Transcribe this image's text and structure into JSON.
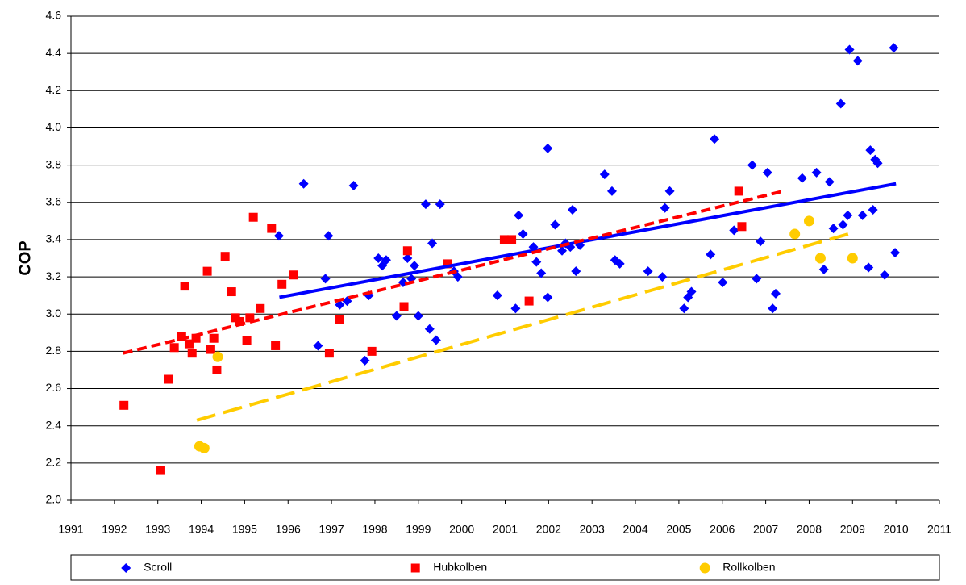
{
  "chart_data": {
    "type": "scatter",
    "y_label": "COP",
    "xlim": [
      1991,
      2011
    ],
    "xticks": [
      1991,
      1992,
      1993,
      1994,
      1995,
      1996,
      1997,
      1998,
      1999,
      2000,
      2001,
      2002,
      2003,
      2004,
      2005,
      2006,
      2007,
      2008,
      2009,
      2010,
      2011
    ],
    "ylim": [
      2.0,
      4.6
    ],
    "yticks": [
      {
        "value": 2.0,
        "label": "2.0"
      },
      {
        "value": 2.2,
        "label": "2.2"
      },
      {
        "value": 2.4,
        "label": "2.4"
      },
      {
        "value": 2.6,
        "label": "2.6"
      },
      {
        "value": 2.8,
        "label": "2.8"
      },
      {
        "value": 3.0,
        "label": "3.0"
      },
      {
        "value": 3.2,
        "label": "3.2"
      },
      {
        "value": 3.4,
        "label": "3.4"
      },
      {
        "value": 3.6,
        "label": "3.6"
      },
      {
        "value": 3.8,
        "label": "3.8"
      },
      {
        "value": 4.0,
        "label": "4.0"
      },
      {
        "value": 4.2,
        "label": "4.2"
      },
      {
        "value": 4.4,
        "label": "4.4"
      },
      {
        "value": 4.6,
        "label": "4.6"
      }
    ],
    "grid": true,
    "legend": "bottom",
    "series": [
      {
        "name": "Scroll",
        "color": "#0000ff",
        "marker": "diamond",
        "trend_style": "solid",
        "x": [
          1995.79,
          1996.36,
          1996.69,
          1996.86,
          1996.93,
          1997.19,
          1997.36,
          1997.51,
          1997.77,
          1997.86,
          1998.08,
          1998.17,
          1998.26,
          1998.5,
          1998.65,
          1998.75,
          1998.84,
          1998.91,
          1999.0,
          1999.17,
          1999.26,
          1999.32,
          1999.41,
          1999.5,
          1999.82,
          1999.91,
          2000.82,
          2001.24,
          2001.31,
          2001.41,
          2001.65,
          2001.72,
          2001.83,
          2001.98,
          2001.98,
          2002.15,
          2002.31,
          2002.39,
          2002.5,
          2002.55,
          2002.63,
          2002.72,
          2003.29,
          2003.46,
          2003.53,
          2003.64,
          2004.29,
          2004.62,
          2004.68,
          2004.79,
          2005.12,
          2005.21,
          2005.29,
          2005.73,
          2005.82,
          2006.01,
          2006.27,
          2006.69,
          2006.79,
          2006.88,
          2007.04,
          2007.16,
          2007.23,
          2007.84,
          2008.17,
          2008.34,
          2008.47,
          2008.56,
          2008.73,
          2008.78,
          2008.89,
          2008.93,
          2009.12,
          2009.23,
          2009.37,
          2009.41,
          2009.47,
          2009.52,
          2009.58,
          2009.74,
          2009.95,
          2009.98
        ],
        "values": [
          3.42,
          3.7,
          2.83,
          3.19,
          3.42,
          3.05,
          3.07,
          3.69,
          2.75,
          3.1,
          3.3,
          3.26,
          3.29,
          2.99,
          3.17,
          3.3,
          3.19,
          3.26,
          2.99,
          3.59,
          2.92,
          3.38,
          2.86,
          3.59,
          3.23,
          3.2,
          3.1,
          3.03,
          3.53,
          3.43,
          3.36,
          3.28,
          3.22,
          3.09,
          3.89,
          3.48,
          3.34,
          3.38,
          3.36,
          3.56,
          3.23,
          3.37,
          3.75,
          3.66,
          3.29,
          3.27,
          3.23,
          3.2,
          3.57,
          3.66,
          3.03,
          3.09,
          3.12,
          3.32,
          3.94,
          3.17,
          3.45,
          3.8,
          3.19,
          3.39,
          3.76,
          3.03,
          3.11,
          3.73,
          3.76,
          3.24,
          3.71,
          3.46,
          4.13,
          3.48,
          3.53,
          4.42,
          4.36,
          3.53,
          3.25,
          3.88,
          3.56,
          3.83,
          3.81,
          3.21,
          4.43,
          3.33
        ],
        "trend": {
          "x": [
            1995.8,
            2010.0
          ],
          "values": [
            3.09,
            3.7
          ]
        }
      },
      {
        "name": "Hubkolben",
        "color": "#ff0000",
        "marker": "square",
        "trend_style": "dashed",
        "x": [
          1992.22,
          1993.07,
          1993.24,
          1993.38,
          1993.55,
          1993.62,
          1993.72,
          1993.79,
          1993.88,
          1994.14,
          1994.22,
          1994.29,
          1994.36,
          1994.55,
          1994.7,
          1994.79,
          1994.88,
          1995.05,
          1995.12,
          1995.2,
          1995.36,
          1995.62,
          1995.71,
          1995.86,
          1996.12,
          1996.95,
          1997.19,
          1997.93,
          1998.67,
          1998.75,
          1999.67,
          2000.98,
          2001.15,
          2001.55,
          2006.38,
          2006.45
        ],
        "values": [
          2.51,
          2.16,
          2.65,
          2.82,
          2.88,
          3.15,
          2.84,
          2.79,
          2.87,
          3.23,
          2.81,
          2.87,
          2.7,
          3.31,
          3.12,
          2.98,
          2.96,
          2.86,
          2.98,
          3.52,
          3.03,
          3.46,
          2.83,
          3.16,
          3.21,
          2.79,
          2.97,
          2.8,
          3.04,
          3.34,
          3.27,
          3.4,
          3.4,
          3.07,
          3.66,
          3.47
        ],
        "trend": {
          "x": [
            1992.2,
            2007.4
          ],
          "values": [
            2.79,
            3.66
          ]
        }
      },
      {
        "name": "Rollkolben",
        "color": "#ffcc00",
        "marker": "circle",
        "trend_style": "long-dashed",
        "x": [
          1993.96,
          1994.07,
          1994.38,
          2007.67,
          2008.0,
          2008.26,
          2009.0
        ],
        "values": [
          2.29,
          2.28,
          2.77,
          3.43,
          3.5,
          3.3,
          3.3
        ],
        "trend": {
          "x": [
            1993.9,
            2009.05
          ],
          "values": [
            2.43,
            3.44
          ]
        }
      }
    ]
  }
}
